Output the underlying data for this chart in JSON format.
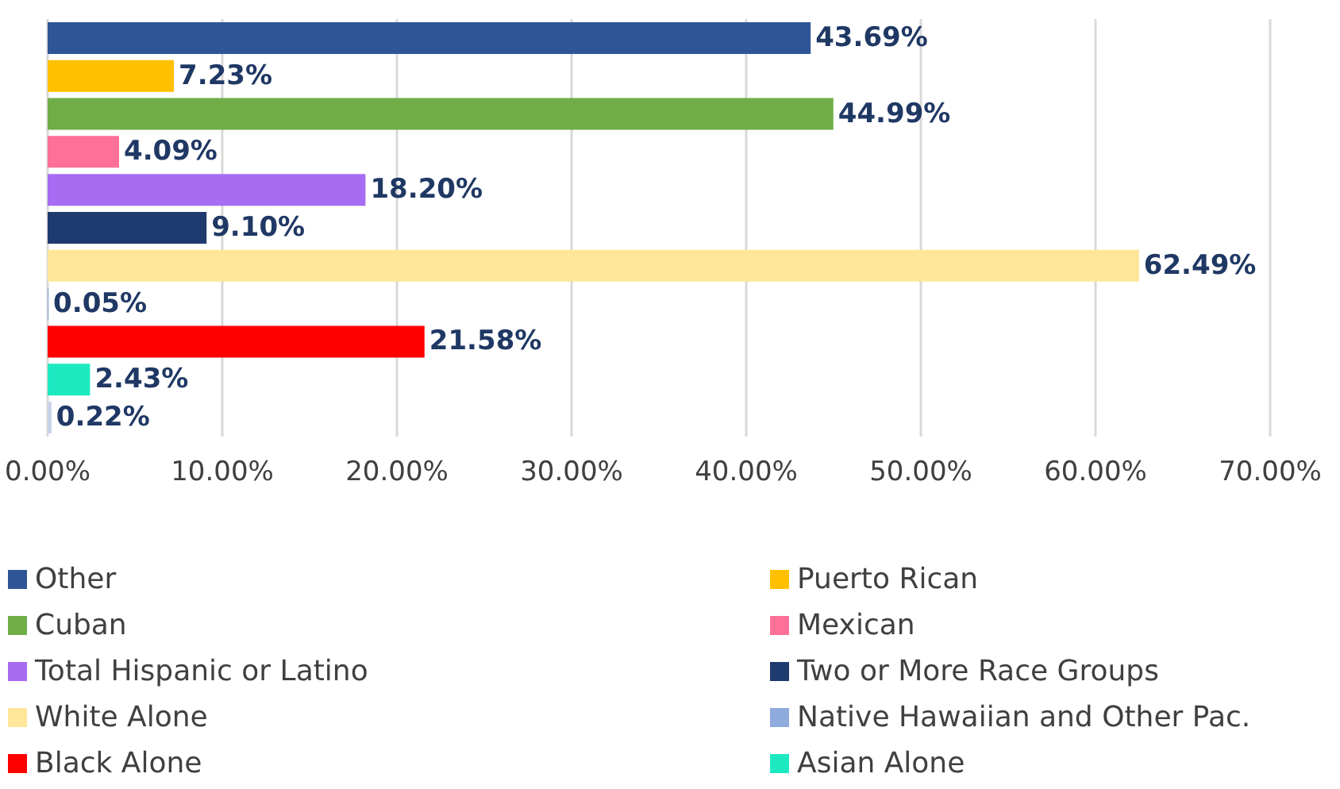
{
  "chart_data": {
    "type": "bar",
    "orientation": "horizontal",
    "categories": [
      null,
      null,
      null,
      null,
      null,
      null,
      null,
      null,
      null,
      null,
      null
    ],
    "xlim": [
      0,
      70
    ],
    "xticks": [
      {
        "value": 0,
        "label": "0.00%"
      },
      {
        "value": 10,
        "label": "10.00%"
      },
      {
        "value": 20,
        "label": "20.00%"
      },
      {
        "value": 30,
        "label": "30.00%"
      },
      {
        "value": 40,
        "label": "40.00%"
      },
      {
        "value": 50,
        "label": "50.00%"
      },
      {
        "value": 60,
        "label": "60.00%"
      },
      {
        "value": 70,
        "label": "70.00%"
      }
    ],
    "grid": "x",
    "legend": "bottom",
    "series": [
      {
        "name": "Other",
        "color": "#2f5597",
        "values": [
          43.69,
          null,
          null,
          null,
          null,
          null,
          null,
          null,
          null,
          null,
          null
        ],
        "value_labels": [
          "43.69%",
          null,
          null,
          null,
          null,
          null,
          null,
          null,
          null,
          null,
          null
        ]
      },
      {
        "name": "Puerto Rican",
        "color": "#ffc000",
        "values": [
          null,
          7.23,
          null,
          null,
          null,
          null,
          null,
          null,
          null,
          null,
          null
        ],
        "value_labels": [
          null,
          "7.23%",
          null,
          null,
          null,
          null,
          null,
          null,
          null,
          null,
          null
        ]
      },
      {
        "name": "Cuban",
        "color": "#70ad47",
        "values": [
          null,
          null,
          44.99,
          null,
          null,
          null,
          null,
          null,
          null,
          null,
          null
        ],
        "value_labels": [
          null,
          null,
          "44.99%",
          null,
          null,
          null,
          null,
          null,
          null,
          null,
          null
        ]
      },
      {
        "name": "Mexican",
        "color": "#ff7098",
        "values": [
          null,
          null,
          null,
          4.09,
          null,
          null,
          null,
          null,
          null,
          null,
          null
        ],
        "value_labels": [
          null,
          null,
          null,
          "4.09%",
          null,
          null,
          null,
          null,
          null,
          null,
          null
        ]
      },
      {
        "name": "Total Hispanic or Latino",
        "color": "#a66cf2",
        "values": [
          null,
          null,
          null,
          null,
          18.2,
          null,
          null,
          null,
          null,
          null,
          null
        ],
        "value_labels": [
          null,
          null,
          null,
          null,
          "18.20%",
          null,
          null,
          null,
          null,
          null,
          null
        ]
      },
      {
        "name": "Two or More Race Groups",
        "color": "#1f3a6e",
        "values": [
          null,
          null,
          null,
          null,
          null,
          9.1,
          null,
          null,
          null,
          null,
          null
        ],
        "value_labels": [
          null,
          null,
          null,
          null,
          null,
          "9.10%",
          null,
          null,
          null,
          null,
          null
        ]
      },
      {
        "name": "White Alone",
        "color": "#ffe699",
        "values": [
          null,
          null,
          null,
          null,
          null,
          null,
          62.49,
          null,
          null,
          null,
          null
        ],
        "value_labels": [
          null,
          null,
          null,
          null,
          null,
          null,
          "62.49%",
          null,
          null,
          null,
          null
        ]
      },
      {
        "name": "Native Hawaiian and Other Pac.",
        "color": "#8faadc",
        "values": [
          null,
          null,
          null,
          null,
          null,
          null,
          null,
          0.05,
          null,
          null,
          null
        ],
        "value_labels": [
          null,
          null,
          null,
          null,
          null,
          null,
          null,
          "0.05%",
          null,
          null,
          null
        ]
      },
      {
        "name": "Black Alone",
        "color": "#ff0000",
        "values": [
          null,
          null,
          null,
          null,
          null,
          null,
          null,
          null,
          21.58,
          null,
          null
        ],
        "value_labels": [
          null,
          null,
          null,
          null,
          null,
          null,
          null,
          null,
          "21.58%",
          null,
          null
        ]
      },
      {
        "name": "Asian Alone",
        "color": "#1de9c0",
        "values": [
          null,
          null,
          null,
          null,
          null,
          null,
          null,
          null,
          null,
          2.43,
          null
        ],
        "value_labels": [
          null,
          null,
          null,
          null,
          null,
          null,
          null,
          null,
          null,
          "2.43%",
          null
        ]
      },
      {
        "color": "#c9d3ea",
        "values": [
          null,
          null,
          null,
          null,
          null,
          null,
          null,
          null,
          null,
          null,
          0.22
        ],
        "value_labels": [
          null,
          null,
          null,
          null,
          null,
          null,
          null,
          null,
          null,
          null,
          "0.22%"
        ]
      }
    ]
  }
}
